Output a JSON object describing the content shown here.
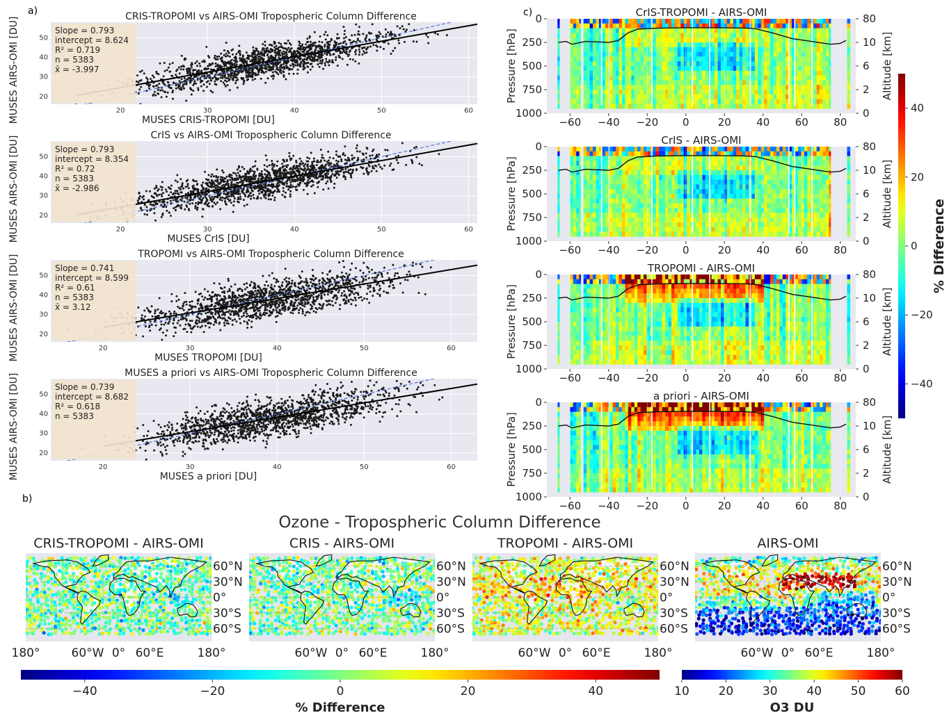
{
  "panel_labels": {
    "a": "a)",
    "b": "b)",
    "c": "c)"
  },
  "colors": {
    "axes_bg": "#e8e8f0",
    "stats_box": "#f1e3cd",
    "fit_line": "#000000",
    "one_to_one": "#4a6fd6",
    "points": "#1a1a1a",
    "grid": "#ffffff"
  },
  "chart_data": [
    {
      "type": "scatter",
      "id": "a1",
      "title": "CRIS-TROPOMI vs AIRS-OMI Tropospheric Column Difference",
      "xlabel": "MUSES CRIS-TROPOMI [DU]",
      "ylabel": "MUSES AIRS-OMI [DU]",
      "xlim": [
        12,
        61
      ],
      "ylim": [
        16,
        58
      ],
      "xticks": [
        20,
        30,
        40,
        50,
        60
      ],
      "yticks": [
        20,
        30,
        40,
        50
      ],
      "xtick_labels": [
        "20",
        "30",
        "40",
        "50",
        "60"
      ],
      "ytick_labels": [
        "20",
        "30",
        "40",
        "50"
      ],
      "x_center": 36.5,
      "x_spread": 7.0,
      "scatter_noise": 4.2,
      "fit": {
        "slope": 0.793,
        "intercept": 8.624,
        "x_start": 15
      },
      "stats": [
        "Slope = 0.793",
        "intercept = 8.624",
        "R² = 0.719",
        "n = 5383",
        "x̄ = -3.997"
      ]
    },
    {
      "type": "scatter",
      "id": "a2",
      "title": "CrIS vs AIRS-OMI Tropospheric Column Difference",
      "xlabel": "MUSES CrIS [DU]",
      "ylabel": "MUSES AIRS-OMI [DU]",
      "xlim": [
        12,
        61
      ],
      "ylim": [
        16,
        58
      ],
      "xticks": [
        20,
        30,
        40,
        50,
        60
      ],
      "yticks": [
        20,
        30,
        40,
        50
      ],
      "xtick_labels": [
        "20",
        "30",
        "40",
        "50",
        "60"
      ],
      "ytick_labels": [
        "20",
        "30",
        "40",
        "50"
      ],
      "x_center": 36.0,
      "x_spread": 7.0,
      "scatter_noise": 4.2,
      "fit": {
        "slope": 0.793,
        "intercept": 8.354,
        "x_start": 15
      },
      "stats": [
        "Slope = 0.793",
        "intercept = 8.354",
        "R² = 0.72",
        "n = 5383",
        "x̄ = -2.986"
      ]
    },
    {
      "type": "scatter",
      "id": "a3",
      "title": "TROPOMI vs AIRS-OMI Tropospheric Column Difference",
      "xlabel": "MUSES TROPOMI [DU]",
      "ylabel": "MUSES AIRS-OMI [DU]",
      "xlim": [
        14,
        63
      ],
      "ylim": [
        16,
        58
      ],
      "xticks": [
        20,
        30,
        40,
        50,
        60
      ],
      "yticks": [
        20,
        30,
        40,
        50
      ],
      "xtick_labels": [
        "20",
        "30",
        "40",
        "50",
        "60"
      ],
      "ytick_labels": [
        "20",
        "30",
        "40",
        "50"
      ],
      "x_center": 39.0,
      "x_spread": 7.0,
      "scatter_noise": 4.8,
      "fit": {
        "slope": 0.741,
        "intercept": 8.599,
        "x_start": 20
      },
      "stats": [
        "Slope = 0.741",
        "intercept = 8.599",
        "R² = 0.61",
        "n = 5383",
        "x̄ = 3.12"
      ]
    },
    {
      "type": "scatter",
      "id": "a4",
      "title": "MUSES a priori vs AIRS-OMI Tropospheric Column Difference",
      "xlabel": "MUSES a priori [DU]",
      "ylabel": "MUSES AIRS-OMI [DU]",
      "xlim": [
        14,
        63
      ],
      "ylim": [
        16,
        58
      ],
      "xticks": [
        20,
        30,
        40,
        50,
        60
      ],
      "yticks": [
        20,
        30,
        40,
        50
      ],
      "xtick_labels": [
        "20",
        "30",
        "40",
        "50",
        "60"
      ],
      "ytick_labels": [
        "20",
        "30",
        "40",
        "50"
      ],
      "x_center": 39.0,
      "x_spread": 7.0,
      "scatter_noise": 4.8,
      "fit": {
        "slope": 0.739,
        "intercept": 8.682,
        "x_start": 20
      },
      "stats": [
        "Slope = 0.739",
        "intercept = 8.682",
        "R² = 0.618",
        "n = 5383"
      ]
    },
    {
      "type": "heatmap",
      "id": "c1",
      "title": "CrIS-TROPOMI - AIRS-OMI",
      "xlabel": "",
      "ylabel": "Pressure [hPa]",
      "ylabel_right": "Altitude [km]",
      "xlim": [
        -72,
        88
      ],
      "ylim": [
        1000,
        0
      ],
      "xticks": [
        -60,
        -40,
        -20,
        0,
        20,
        40,
        60,
        80
      ],
      "xtick_labels": [
        "−60",
        "−40",
        "−20",
        "0",
        "20",
        "40",
        "60",
        "80"
      ],
      "yticks": [
        0,
        250,
        500,
        750,
        1000
      ],
      "ytick_labels": [
        "0",
        "250",
        "500",
        "750",
        "1000"
      ],
      "right_ticks": [
        80,
        10,
        6,
        2,
        0
      ],
      "right_tick_labels": [
        "80",
        "10",
        "6",
        "2",
        "0"
      ],
      "right_tick_pressures": [
        0,
        250,
        500,
        750,
        1000
      ],
      "upper_bias": -5,
      "tropopause_hpa": [
        [
          -66,
          250
        ],
        [
          -62,
          240
        ],
        [
          -59,
          270
        ],
        [
          -52,
          240
        ],
        [
          -40,
          250
        ],
        [
          -35,
          230
        ],
        [
          -30,
          150
        ],
        [
          -25,
          110
        ],
        [
          -15,
          100
        ],
        [
          0,
          95
        ],
        [
          15,
          95
        ],
        [
          30,
          98
        ],
        [
          36,
          105
        ],
        [
          45,
          150
        ],
        [
          55,
          210
        ],
        [
          65,
          240
        ],
        [
          75,
          270
        ],
        [
          80,
          260
        ],
        [
          83,
          230
        ]
      ]
    },
    {
      "type": "heatmap",
      "id": "c2",
      "title": "CrIS - AIRS-OMI",
      "xlabel": "",
      "ylabel": "Pressure [hPa]",
      "ylabel_right": "Altitude [km]",
      "xlim": [
        -72,
        88
      ],
      "ylim": [
        1000,
        0
      ],
      "xticks": [
        -60,
        -40,
        -20,
        0,
        20,
        40,
        60,
        80
      ],
      "xtick_labels": [
        "−60",
        "−40",
        "−20",
        "0",
        "20",
        "40",
        "60",
        "80"
      ],
      "yticks": [
        0,
        250,
        500,
        750,
        1000
      ],
      "ytick_labels": [
        "0",
        "250",
        "500",
        "750",
        "1000"
      ],
      "right_ticks": [
        80,
        10,
        6,
        2,
        0
      ],
      "right_tick_labels": [
        "80",
        "10",
        "6",
        "2",
        "0"
      ],
      "right_tick_pressures": [
        0,
        250,
        500,
        750,
        1000
      ],
      "upper_bias": -8,
      "tropopause_hpa": [
        [
          -66,
          250
        ],
        [
          -62,
          240
        ],
        [
          -59,
          270
        ],
        [
          -52,
          240
        ],
        [
          -40,
          250
        ],
        [
          -35,
          230
        ],
        [
          -30,
          150
        ],
        [
          -25,
          110
        ],
        [
          -15,
          100
        ],
        [
          0,
          95
        ],
        [
          15,
          95
        ],
        [
          30,
          98
        ],
        [
          36,
          105
        ],
        [
          45,
          150
        ],
        [
          55,
          210
        ],
        [
          65,
          240
        ],
        [
          75,
          270
        ],
        [
          80,
          260
        ],
        [
          83,
          230
        ]
      ]
    },
    {
      "type": "heatmap",
      "id": "c3",
      "title": "TROPOMI - AIRS-OMI",
      "xlabel": "",
      "ylabel": "Pressure [hPa]",
      "ylabel_right": "Altitude [km]",
      "xlim": [
        -72,
        88
      ],
      "ylim": [
        1000,
        0
      ],
      "xticks": [
        -60,
        -40,
        -20,
        0,
        20,
        40,
        60,
        80
      ],
      "xtick_labels": [
        "−60",
        "−40",
        "−20",
        "0",
        "20",
        "40",
        "60",
        "80"
      ],
      "yticks": [
        0,
        250,
        500,
        750,
        1000
      ],
      "ytick_labels": [
        "0",
        "250",
        "500",
        "750",
        "1000"
      ],
      "right_ticks": [
        80,
        10,
        6,
        2,
        0
      ],
      "right_tick_labels": [
        "80",
        "10",
        "6",
        "2",
        "0"
      ],
      "right_tick_pressures": [
        0,
        250,
        500,
        750,
        1000
      ],
      "upper_bias": 28,
      "tropopause_hpa": [
        [
          -66,
          250
        ],
        [
          -62,
          240
        ],
        [
          -59,
          270
        ],
        [
          -52,
          240
        ],
        [
          -40,
          250
        ],
        [
          -35,
          230
        ],
        [
          -30,
          150
        ],
        [
          -25,
          110
        ],
        [
          -15,
          100
        ],
        [
          0,
          95
        ],
        [
          15,
          95
        ],
        [
          30,
          98
        ],
        [
          36,
          105
        ],
        [
          45,
          150
        ],
        [
          55,
          210
        ],
        [
          65,
          240
        ],
        [
          75,
          270
        ],
        [
          80,
          260
        ],
        [
          83,
          230
        ]
      ]
    },
    {
      "type": "heatmap",
      "id": "c4",
      "title": "a priori - AIRS-OMI",
      "xlabel": "",
      "ylabel": "Pressure [hPa]",
      "ylabel_right": "Altitude [km]",
      "xlim": [
        -72,
        88
      ],
      "ylim": [
        1000,
        0
      ],
      "xticks": [
        -60,
        -40,
        -20,
        0,
        20,
        40,
        60,
        80
      ],
      "xtick_labels": [
        "−60",
        "−40",
        "−20",
        "0",
        "20",
        "40",
        "60",
        "80"
      ],
      "yticks": [
        0,
        250,
        500,
        750,
        1000
      ],
      "ytick_labels": [
        "0",
        "250",
        "500",
        "750",
        "1000"
      ],
      "right_ticks": [
        80,
        10,
        6,
        2,
        0
      ],
      "right_tick_labels": [
        "80",
        "10",
        "6",
        "2",
        "0"
      ],
      "right_tick_pressures": [
        0,
        250,
        500,
        750,
        1000
      ],
      "upper_bias": 36,
      "tropopause_hpa": [
        [
          -66,
          250
        ],
        [
          -62,
          240
        ],
        [
          -59,
          270
        ],
        [
          -52,
          240
        ],
        [
          -40,
          250
        ],
        [
          -35,
          230
        ],
        [
          -30,
          150
        ],
        [
          -25,
          110
        ],
        [
          -15,
          100
        ],
        [
          0,
          95
        ],
        [
          15,
          95
        ],
        [
          30,
          98
        ],
        [
          36,
          105
        ],
        [
          45,
          150
        ],
        [
          55,
          210
        ],
        [
          65,
          240
        ],
        [
          75,
          270
        ],
        [
          80,
          260
        ],
        [
          83,
          230
        ]
      ]
    },
    {
      "type": "heatmap",
      "id": "b-maps",
      "title": "Ozone - Tropospheric Column Difference",
      "maps": [
        {
          "title": "CRIS-TROPOMI - AIRS-OMI",
          "scale": "diff",
          "bias": -3
        },
        {
          "title": "CRIS - AIRS-OMI",
          "scale": "diff",
          "bias": -2
        },
        {
          "title": "TROPOMI - AIRS-OMI",
          "scale": "diff",
          "bias": 8
        },
        {
          "title": "AIRS-OMI",
          "scale": "du",
          "bias": 0
        }
      ],
      "lon_ticks": [
        -180,
        -60,
        0,
        60,
        180
      ],
      "lon_tick_labels": [
        "180°",
        "60°W",
        "0°",
        "60°E",
        "180°"
      ],
      "lat_ticks": [
        60,
        30,
        0,
        -30,
        -60
      ],
      "lat_tick_labels": [
        "60°N",
        "30°N",
        "0°",
        "30°S",
        "60°S"
      ]
    },
    {
      "type": "heatmap",
      "id": "colorbar-c",
      "label": "% Difference",
      "range": [
        -50,
        50
      ],
      "ticks": [
        40,
        20,
        0,
        -20,
        -40
      ],
      "tick_labels": [
        "40",
        "20",
        "0",
        "−20",
        "−40"
      ]
    },
    {
      "type": "heatmap",
      "id": "colorbar-b-diff",
      "label": "% Difference",
      "range": [
        -50,
        50
      ],
      "ticks": [
        -40,
        -20,
        0,
        20,
        40
      ],
      "tick_labels": [
        "−40",
        "−20",
        "0",
        "20",
        "40"
      ]
    },
    {
      "type": "heatmap",
      "id": "colorbar-b-du",
      "label": "O3 DU",
      "range": [
        10,
        60
      ],
      "ticks": [
        10,
        20,
        30,
        40,
        50,
        60
      ],
      "tick_labels": [
        "10",
        "20",
        "30",
        "40",
        "50",
        "60"
      ]
    }
  ]
}
